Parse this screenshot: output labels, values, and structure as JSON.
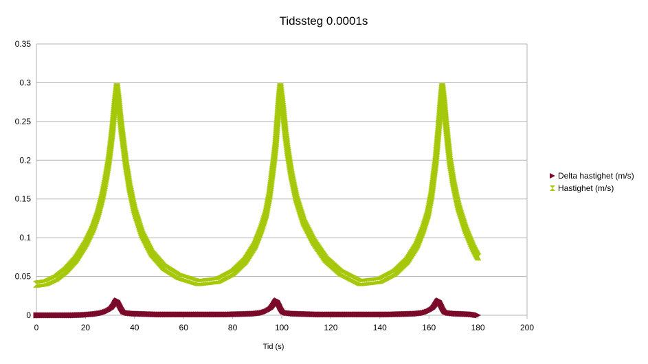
{
  "chart_data": {
    "type": "scatter",
    "title": "Tidssteg 0.0001s",
    "xlabel": "Tid (s)",
    "ylabel": "",
    "xlim": [
      0,
      200
    ],
    "ylim": [
      0,
      0.35
    ],
    "xticks": [
      "0",
      "20",
      "40",
      "60",
      "80",
      "100",
      "120",
      "140",
      "160",
      "180",
      "200"
    ],
    "yticks": [
      "0",
      "0.05",
      "0.1",
      "0.15",
      "0.2",
      "0.25",
      "0.3",
      "0.35"
    ],
    "grid": true,
    "legend_position": "right",
    "series": [
      {
        "name": "Delta hastighet (m/s)",
        "color": "#7b0a2a",
        "marker": "triangle-right",
        "x": [
          0,
          5,
          10,
          15,
          20,
          24,
          27,
          29,
          30.5,
          31.5,
          32.3,
          33,
          33.7,
          34.5,
          35.5,
          37,
          40,
          45,
          50,
          55,
          60,
          66,
          72,
          78,
          84,
          89,
          92,
          94,
          95.5,
          96.5,
          97.4,
          98.1,
          98.8,
          99.5,
          100.5,
          102,
          105,
          110,
          115,
          120,
          125,
          132,
          138,
          144,
          150,
          155,
          158,
          160,
          161.5,
          162.5,
          163.4,
          164.1,
          164.8,
          165.5,
          166.5,
          168,
          171,
          175,
          178,
          180
        ],
        "y": [
          0.0,
          0.0,
          0.0,
          0.0,
          0.0005,
          0.0015,
          0.003,
          0.005,
          0.008,
          0.012,
          0.017,
          0.019,
          0.015,
          0.01,
          0.005,
          0.003,
          0.002,
          0.0015,
          0.001,
          0.001,
          0.001,
          0.001,
          0.001,
          0.001,
          0.0015,
          0.002,
          0.003,
          0.005,
          0.008,
          0.012,
          0.017,
          0.019,
          0.015,
          0.01,
          0.005,
          0.003,
          0.002,
          0.0015,
          0.001,
          0.001,
          0.001,
          0.001,
          0.001,
          0.001,
          0.0015,
          0.002,
          0.003,
          0.005,
          0.008,
          0.012,
          0.017,
          0.019,
          0.015,
          0.01,
          0.005,
          0.003,
          0.002,
          0.0015,
          0.001,
          0.0
        ]
      },
      {
        "name": "Hastighet (m/s)",
        "color": "#a6c80a",
        "marker": "hourglass",
        "x": [
          0,
          4,
          8,
          12,
          16,
          20,
          23,
          25,
          27,
          28.5,
          29.5,
          30.3,
          31,
          31.6,
          32.2,
          32.8,
          33.4,
          34,
          34.7,
          35.5,
          36.5,
          38,
          40,
          43,
          47,
          52,
          58,
          66,
          74,
          80,
          85,
          89,
          91.5,
          93.5,
          95,
          96,
          96.8,
          97.5,
          98.2,
          98.8,
          99.4,
          100,
          100.7,
          101.5,
          102.5,
          104,
          106,
          109,
          113,
          118,
          124,
          132,
          140,
          146,
          151,
          155,
          157.5,
          159.5,
          161,
          162,
          162.8,
          163.5,
          164.2,
          164.8,
          165.4,
          166,
          166.7,
          167.5,
          168.5,
          170,
          172,
          175,
          178,
          180
        ],
        "y": [
          0.04,
          0.042,
          0.048,
          0.058,
          0.072,
          0.092,
          0.112,
          0.13,
          0.155,
          0.18,
          0.2,
          0.22,
          0.24,
          0.26,
          0.28,
          0.295,
          0.28,
          0.26,
          0.24,
          0.22,
          0.195,
          0.165,
          0.135,
          0.105,
          0.08,
          0.062,
          0.05,
          0.042,
          0.045,
          0.055,
          0.07,
          0.09,
          0.11,
          0.13,
          0.155,
          0.18,
          0.2,
          0.22,
          0.25,
          0.275,
          0.295,
          0.28,
          0.26,
          0.235,
          0.21,
          0.18,
          0.15,
          0.12,
          0.095,
          0.072,
          0.055,
          0.042,
          0.045,
          0.055,
          0.07,
          0.09,
          0.11,
          0.13,
          0.155,
          0.18,
          0.2,
          0.225,
          0.25,
          0.275,
          0.295,
          0.28,
          0.255,
          0.23,
          0.2,
          0.17,
          0.14,
          0.11,
          0.087,
          0.075
        ]
      }
    ]
  }
}
